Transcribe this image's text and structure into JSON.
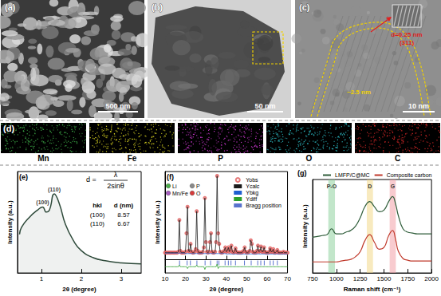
{
  "panels": {
    "a": {
      "label": "(a)",
      "scale_bar": "500 nm"
    },
    "b": {
      "label": "(b)",
      "scale_bar": "50 nm"
    },
    "c": {
      "label": "(c)",
      "scale_bar": "10 nm",
      "lattice_spacing": "d=0.25 nm",
      "plane": "(311)",
      "layer_thickness": "~2.5 nm"
    },
    "d": {
      "label": "(d)",
      "maps": [
        {
          "element": "Mn",
          "color": "#3fae49"
        },
        {
          "element": "Fe",
          "color": "#e6e024"
        },
        {
          "element": "P",
          "color": "#d23ad6"
        },
        {
          "element": "O",
          "color": "#2fc6cf"
        },
        {
          "element": "C",
          "color": "#e02a2a"
        }
      ]
    }
  },
  "chart_data": [
    {
      "panel": "(e)",
      "type": "line",
      "x": [
        0.45,
        0.5,
        0.7,
        0.9,
        1.03,
        1.12,
        1.2,
        1.32,
        1.45,
        1.6,
        1.8,
        2.0,
        2.3,
        2.6,
        3.0,
        3.5
      ],
      "values": [
        0.38,
        0.45,
        0.55,
        0.62,
        0.65,
        0.6,
        0.62,
        0.78,
        0.68,
        0.48,
        0.32,
        0.22,
        0.15,
        0.12,
        0.1,
        0.09
      ],
      "color": "#2e4a3a",
      "xlim": [
        0.4,
        3.5
      ],
      "xticks": [
        1,
        2,
        3
      ],
      "ylim": [
        0,
        1
      ],
      "tick_labels": "x",
      "x_label": "2θ (degree)",
      "y_label": "Intensity (a.u.)",
      "peak_labels": [
        {
          "text": "(100)",
          "x": 1.03,
          "y": 0.65
        },
        {
          "text": "(110)",
          "x": 1.32,
          "y": 0.78
        }
      ],
      "formula": {
        "left": "d =",
        "numerator": "λ",
        "denominator": "2sinθ"
      },
      "table": {
        "header": [
          "hkl",
          "d (nm)"
        ],
        "rows": [
          [
            "(100)",
            8.57
          ],
          [
            "(110)",
            6.67
          ]
        ]
      }
    },
    {
      "panel": "(f)",
      "type": "line",
      "x": [
        10,
        10.5,
        11,
        11.5,
        12,
        12.5,
        13,
        13.5,
        14,
        14.5,
        15,
        15.5,
        16,
        16.5,
        17,
        17.5,
        18,
        18.5,
        19,
        19.5,
        20,
        20.5,
        21,
        21.5,
        22,
        22.5,
        23,
        23.5,
        24,
        24.5,
        25,
        25.5,
        26,
        26.5,
        27,
        27.5,
        28,
        28.5,
        29,
        29.5,
        30,
        30.5,
        31,
        31.5,
        32,
        32.5,
        33,
        33.5,
        34,
        34.5,
        35,
        35.5,
        36,
        36.5,
        37,
        37.5,
        38,
        38.5,
        39,
        39.5,
        40,
        40.5,
        41,
        41.5,
        42,
        42.5,
        43,
        43.5,
        44,
        44.5,
        45,
        45.5,
        46,
        46.5,
        47,
        47.5,
        48,
        48.5,
        49,
        49.5,
        50,
        50.5,
        51,
        51.5,
        52,
        52.5,
        53,
        53.5,
        54,
        54.5,
        55,
        55.5,
        56,
        56.5,
        57,
        57.5,
        58,
        58.5,
        59,
        59.5,
        60,
        60.5,
        61,
        61.5,
        62,
        62.5,
        63,
        63.5,
        64,
        64.5,
        65,
        65.5,
        66,
        66.5,
        67,
        67.5,
        68,
        68.5,
        69,
        69.5,
        70
      ],
      "series": [
        {
          "name": "Yobs",
          "type": "scatter",
          "marker": "open_circle",
          "color": "#e05a5a",
          "values": [
            8,
            8,
            8,
            8,
            8,
            8,
            8,
            8,
            8,
            8,
            8,
            8,
            8,
            9,
            45,
            10,
            8,
            8,
            8,
            8,
            9,
            30,
            60,
            10,
            9,
            18,
            9,
            8,
            8,
            9,
            12,
            55,
            10,
            8,
            8,
            8,
            8,
            9,
            14,
            70,
            20,
            9,
            8,
            9,
            20,
            30,
            9,
            8,
            8,
            9,
            20,
            95,
            30,
            18,
            9,
            8,
            8,
            9,
            10,
            14,
            9,
            10,
            14,
            9,
            12,
            16,
            9,
            8,
            9,
            13,
            9,
            8,
            8,
            8,
            8,
            8,
            9,
            10,
            14,
            9,
            8,
            8,
            9,
            10,
            22,
            18,
            9,
            8,
            8,
            8,
            10,
            16,
            9,
            10,
            15,
            9,
            9,
            14,
            9,
            8,
            8,
            8,
            9,
            13,
            9,
            9,
            12,
            8,
            8,
            9,
            11,
            8,
            8,
            8,
            8,
            8,
            9,
            8,
            8,
            8,
            8
          ]
        },
        {
          "name": "Ycalc",
          "color": "#1a1a1a",
          "values": [
            8,
            8,
            8,
            8,
            8,
            8,
            8,
            8,
            8,
            8,
            8,
            8,
            8,
            9,
            45,
            10,
            8,
            8,
            8,
            8,
            9,
            30,
            60,
            10,
            9,
            18,
            9,
            8,
            8,
            9,
            12,
            55,
            10,
            8,
            8,
            8,
            8,
            9,
            14,
            70,
            20,
            9,
            8,
            9,
            20,
            30,
            9,
            8,
            8,
            9,
            20,
            95,
            30,
            18,
            9,
            8,
            8,
            9,
            10,
            14,
            9,
            10,
            14,
            9,
            12,
            16,
            9,
            8,
            9,
            13,
            9,
            8,
            8,
            8,
            8,
            8,
            9,
            10,
            14,
            9,
            8,
            8,
            9,
            10,
            22,
            18,
            9,
            8,
            8,
            8,
            10,
            16,
            9,
            10,
            15,
            9,
            9,
            14,
            9,
            8,
            8,
            8,
            9,
            13,
            9,
            9,
            12,
            8,
            8,
            9,
            11,
            8,
            8,
            8,
            8,
            8,
            9,
            8,
            8,
            8,
            8
          ]
        },
        {
          "name": "Ybkg",
          "color": "#1f5fd0",
          "values": [
            7.5,
            7.5,
            7.5,
            7.5,
            7.5,
            7.5,
            7.5,
            7.5,
            7.5,
            7.5,
            7.5,
            7.5,
            7.5,
            7.5,
            7.5,
            7.5,
            7.5,
            7.5,
            7.5,
            7.5,
            7,
            7,
            7,
            7,
            7,
            7,
            7,
            7,
            7,
            7,
            7,
            7,
            7,
            7,
            7,
            7,
            7,
            7,
            7,
            7,
            7,
            7,
            7,
            7,
            7,
            7,
            7,
            7,
            7,
            7,
            7,
            7,
            7,
            7,
            7,
            7,
            7,
            7,
            7,
            7,
            6.5,
            6.5,
            6.5,
            6.5,
            6.5,
            6.5,
            6.5,
            6.5,
            6.5,
            6.5,
            6.5,
            6.5,
            6.5,
            6.5,
            6.5,
            6.5,
            6.5,
            6.5,
            6.5,
            6.5,
            6.5,
            6.5,
            6.5,
            6.5,
            6.5,
            6.5,
            6.5,
            6.5,
            6.5,
            6.5,
            6.5,
            6.5,
            6.5,
            6.5,
            6.5,
            6.5,
            6.5,
            6.5,
            6.5,
            6.5,
            6.5,
            6.5,
            6.5,
            6.5,
            6.5,
            6.5,
            6.5,
            6.5,
            6.5,
            6.5,
            6.5,
            6.5,
            6.5,
            6.5,
            6.5,
            6.5,
            6.5,
            6.5,
            6.5,
            6.5,
            6.5
          ]
        },
        {
          "name": "Ydiff",
          "color": "#2ca02c",
          "values": [
            -8,
            -8,
            -8,
            -8,
            -8,
            -8,
            -8,
            -8,
            -8,
            -8,
            -8,
            -8,
            -8,
            -8,
            -6,
            -8,
            -8,
            -8,
            -8,
            -8,
            -8,
            -8,
            -10,
            -8,
            -8,
            -8,
            -8,
            -8,
            -8,
            -8,
            -8,
            -6,
            -8,
            -8,
            -8,
            -8,
            -8,
            -8,
            -8,
            -11,
            -8,
            -8,
            -8,
            -8,
            -8,
            -8,
            -8,
            -8,
            -8,
            -8,
            -8,
            -5,
            -10,
            -8,
            -8,
            -8,
            -8,
            -8,
            -8,
            -8,
            -8,
            -8,
            -8,
            -8,
            -8,
            -8,
            -8,
            -8,
            -8,
            -8,
            -8,
            -8,
            -8,
            -8,
            -8,
            -8,
            -8,
            -8,
            -8,
            -8,
            -8,
            -8,
            -8,
            -8,
            -8,
            -8,
            -8,
            -8,
            -8,
            -8,
            -8,
            -8,
            -8,
            -8,
            -8,
            -8,
            -8,
            -8,
            -8,
            -8,
            -8,
            -8,
            -8,
            -8,
            -8,
            -8,
            -8,
            -8,
            -8,
            -8,
            -8,
            -8,
            -8,
            -8,
            -8,
            -8,
            -8,
            -8,
            -8,
            -8,
            -8
          ]
        }
      ],
      "bragg_positions": {
        "name": "Bragg position",
        "color": "#3050c0",
        "x": [
          17.1,
          20.8,
          22.4,
          25.6,
          29.6,
          32.3,
          35.5,
          36.4,
          39.4,
          41,
          42.3,
          44.5,
          48.9,
          52.2,
          55.4,
          56.9,
          58.6,
          61.5,
          63,
          65
        ]
      },
      "atoms": [
        {
          "name": "Li",
          "color": "#4cae4c"
        },
        {
          "name": "Mn/Fe",
          "color": "#a65cc0"
        },
        {
          "name": "P",
          "color": "#8a8a8a"
        },
        {
          "name": "O",
          "color": "#d83a3a"
        }
      ],
      "xlim": [
        10,
        70
      ],
      "xticks": [
        10,
        20,
        30,
        40,
        50,
        60,
        70
      ],
      "ylim": [
        -15,
        100
      ],
      "tick_labels": "x",
      "legend": "upper right",
      "x_label": "2θ (degree)",
      "y_label": "Intensity (a.u.)"
    },
    {
      "panel": "(g)",
      "type": "line",
      "x": [
        750,
        800,
        850,
        900,
        950,
        1000,
        1050,
        1100,
        1150,
        1200,
        1250,
        1300,
        1350,
        1400,
        1450,
        1500,
        1550,
        1590,
        1625,
        1650,
        1700,
        1750,
        1800,
        1850,
        1900,
        1950,
        2000
      ],
      "series": [
        {
          "name": "LMFP/C@MC",
          "color": "#2f5d3a",
          "values": [
            0.42,
            0.43,
            0.44,
            0.45,
            0.52,
            0.46,
            0.46,
            0.48,
            0.5,
            0.55,
            0.65,
            0.78,
            0.84,
            0.78,
            0.72,
            0.74,
            0.84,
            0.9,
            0.8,
            0.68,
            0.52,
            0.48,
            0.47,
            0.46,
            0.46,
            0.46,
            0.46
          ]
        },
        {
          "name": "Composite carbon",
          "color": "#c0392b",
          "values": [
            0.13,
            0.13,
            0.13,
            0.13,
            0.13,
            0.13,
            0.14,
            0.15,
            0.16,
            0.19,
            0.25,
            0.38,
            0.45,
            0.36,
            0.28,
            0.3,
            0.44,
            0.5,
            0.38,
            0.26,
            0.17,
            0.15,
            0.14,
            0.14,
            0.14,
            0.14,
            0.14
          ]
        }
      ],
      "bands": [
        {
          "label": "P-O",
          "range": [
            915,
            985
          ],
          "color": "#8fd19e"
        },
        {
          "label": "D",
          "range": [
            1320,
            1385
          ],
          "color": "#f3d98b"
        },
        {
          "label": "G",
          "range": [
            1560,
            1625
          ],
          "color": "#f2a0a8"
        }
      ],
      "xlim": [
        750,
        2000
      ],
      "xticks": [
        750,
        1000,
        1250,
        1500,
        1750,
        2000
      ],
      "ylim": [
        0,
        1.1
      ],
      "tick_labels": "x",
      "legend": "top",
      "x_label": "Raman shift (cm⁻¹)",
      "y_label": "Intensity (a.u.)"
    }
  ]
}
